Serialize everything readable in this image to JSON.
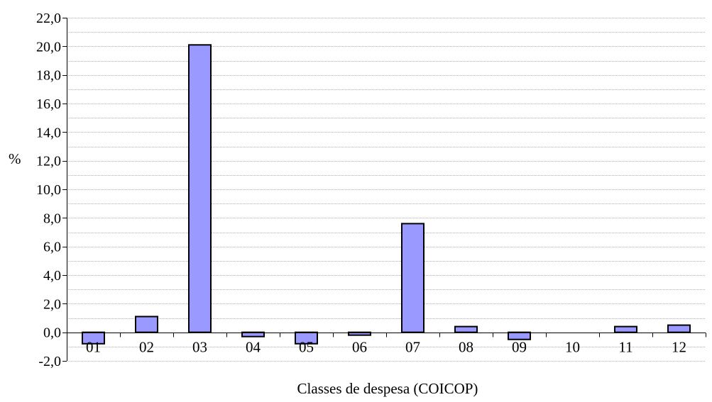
{
  "chart_data": {
    "type": "bar",
    "title": "",
    "xlabel": "Classes de despesa (COICOP)",
    "ylabel": "%",
    "categories": [
      "01",
      "02",
      "03",
      "04",
      "05",
      "06",
      "07",
      "08",
      "09",
      "10",
      "11",
      "12"
    ],
    "values": [
      -0.8,
      1.1,
      20.1,
      -0.3,
      -0.8,
      -0.2,
      7.6,
      0.4,
      -0.5,
      0.0,
      0.4,
      0.5
    ],
    "ylim": [
      -2.0,
      22.0
    ],
    "yticks": [
      "-2,0",
      "0,0",
      "2,0",
      "4,0",
      "6,0",
      "8,0",
      "10,0",
      "12,0",
      "14,0",
      "16,0",
      "18,0",
      "20,0",
      "22,0"
    ],
    "ytick_values": [
      -2,
      0,
      2,
      4,
      6,
      8,
      10,
      12,
      14,
      16,
      18,
      20,
      22
    ],
    "minor_grid_step": 1,
    "grid": true,
    "legend": "none",
    "colors": {
      "bar_fill": "#9999ff",
      "bar_stroke": "#000000",
      "grid": "#b0b0b0",
      "axis": "#000000"
    }
  }
}
